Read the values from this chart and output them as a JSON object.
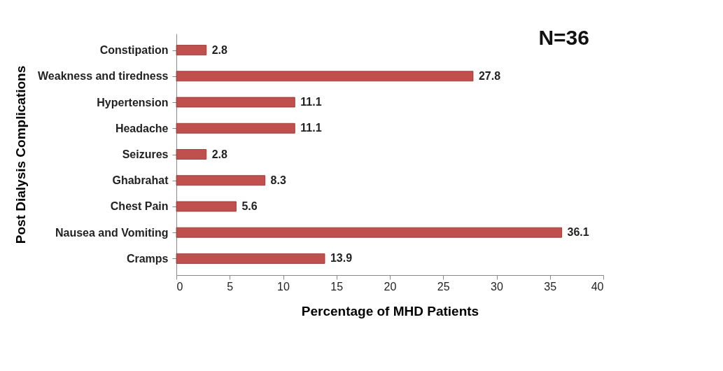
{
  "chart_data": {
    "type": "bar",
    "orientation": "horizontal",
    "xlabel": "Percentage of MHD Patients",
    "ylabel": "Post Dialysis Complications",
    "categories": [
      "Constipation",
      "Weakness and tiredness",
      "Hypertension",
      "Headache",
      "Seizures",
      "Ghabrahat",
      "Chest Pain",
      "Nausea and Vomiting",
      "Cramps"
    ],
    "values": [
      2.8,
      27.8,
      11.1,
      11.1,
      2.8,
      8.3,
      5.6,
      36.1,
      13.9
    ],
    "color": "#c0504d",
    "xlim": [
      0,
      40
    ],
    "xticks": [
      0,
      5,
      10,
      15,
      20,
      25,
      30,
      35,
      40
    ],
    "data_labels": true,
    "annotations": [
      "N=36"
    ]
  }
}
